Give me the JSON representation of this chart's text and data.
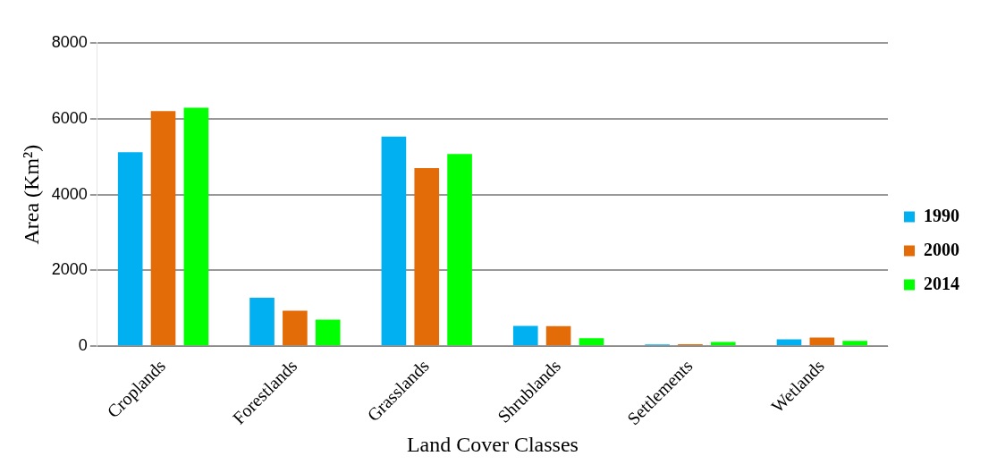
{
  "chart_data": {
    "type": "bar",
    "xlabel": "Land Cover Classes",
    "ylabel": "Area (Km²)",
    "categories": [
      "Croplands",
      "Forestlands",
      "Grasslands",
      "Shrublands",
      "Settlements",
      "Wetlands"
    ],
    "series": [
      {
        "name": "1990",
        "color": "#00b0f0",
        "values": [
          5120,
          1280,
          5530,
          535,
          45,
          180
        ]
      },
      {
        "name": "2000",
        "color": "#e36c09",
        "values": [
          6200,
          940,
          4700,
          530,
          50,
          230
        ]
      },
      {
        "name": "2014",
        "color": "#00ff00",
        "values": [
          6290,
          700,
          5070,
          210,
          110,
          140
        ]
      }
    ],
    "ylim": [
      0,
      8000
    ],
    "yticks": [
      0,
      2000,
      4000,
      6000,
      8000
    ],
    "grid": "y",
    "legend": "right"
  }
}
